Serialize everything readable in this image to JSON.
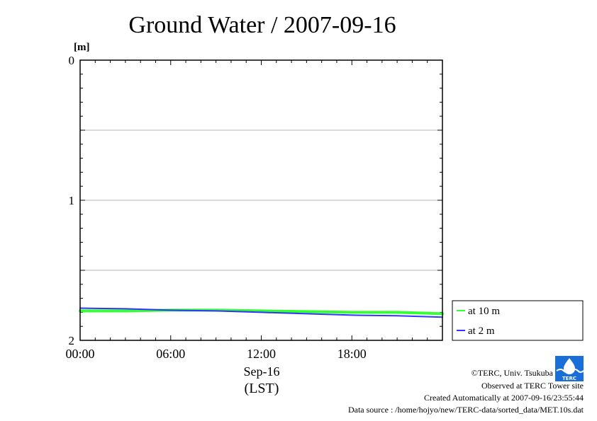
{
  "chart_data": {
    "type": "line",
    "title": "Ground Water / 2007-09-16",
    "ylabel": "[m]",
    "y_axis_inverted": true,
    "ylim": [
      0,
      2
    ],
    "y_ticks": [
      "0",
      "1",
      "2"
    ],
    "x_tick_labels": [
      "00:00",
      "06:00",
      "12:00",
      "18:00"
    ],
    "x_date_label": "Sep-16",
    "x_unit_label": "(LST)",
    "grid": true,
    "legend_position": "right",
    "x": [
      "00:00",
      "03:00",
      "06:00",
      "09:00",
      "12:00",
      "15:00",
      "18:00",
      "21:00",
      "24:00"
    ],
    "series": [
      {
        "name": "at 10 m",
        "color": "#33ff33",
        "values": [
          1.79,
          1.79,
          1.785,
          1.785,
          1.79,
          1.795,
          1.8,
          1.8,
          1.81
        ]
      },
      {
        "name": "at 2 m",
        "color": "#3333ff",
        "values": [
          1.77,
          1.775,
          1.785,
          1.79,
          1.8,
          1.81,
          1.82,
          1.825,
          1.835
        ]
      }
    ]
  },
  "footer": {
    "copyright": "©TERC, Univ. Tsukuba",
    "site": "Observed at TERC Tower site",
    "created": "Created Automatically at 2007-09-16/23:55:44",
    "source": "Data source : /home/hojyo/new/TERC-data/sorted_data/MET.10s.dat"
  },
  "logo": {
    "text": "TERC",
    "color": "#1a6ed8"
  }
}
